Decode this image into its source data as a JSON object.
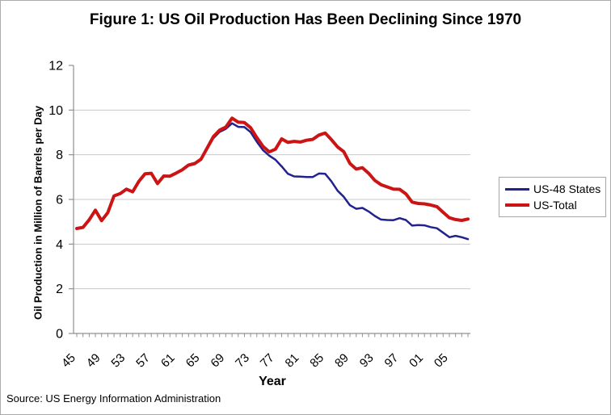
{
  "figure": {
    "source_note": "Source: US Energy Information Administration"
  },
  "chart_data": {
    "type": "line",
    "title": "Figure 1: US Oil Production Has Been Declining Since 1970",
    "xlabel": "Year",
    "ylabel": "Oil Production in Million of Barrels per Day",
    "ylim": [
      0,
      12
    ],
    "grid": "horizontal-only",
    "legend_position": "right-outside",
    "axis_color": "#909090",
    "grid_color": "#c8c8c8",
    "text_color": "#000000",
    "yticks": [
      0,
      2,
      4,
      6,
      8,
      10,
      12
    ],
    "ytick_labels": [
      "0",
      "2",
      "4",
      "6",
      "8",
      "10",
      "12"
    ],
    "xtick_label_step_years": 4,
    "xtick_labels": [
      "45",
      "49",
      "53",
      "57",
      "61",
      "65",
      "69",
      "73",
      "77",
      "81",
      "85",
      "89",
      "93",
      "97",
      "01",
      "05"
    ],
    "x_years": [
      1945,
      1946,
      1947,
      1948,
      1949,
      1950,
      1951,
      1952,
      1953,
      1954,
      1955,
      1956,
      1957,
      1958,
      1959,
      1960,
      1961,
      1962,
      1963,
      1964,
      1965,
      1966,
      1967,
      1968,
      1969,
      1970,
      1971,
      1972,
      1973,
      1974,
      1975,
      1976,
      1977,
      1978,
      1979,
      1980,
      1981,
      1982,
      1983,
      1984,
      1985,
      1986,
      1987,
      1988,
      1989,
      1990,
      1991,
      1992,
      1993,
      1994,
      1995,
      1996,
      1997,
      1998,
      1999,
      2000,
      2001,
      2002,
      2003,
      2004,
      2005,
      2006,
      2007,
      2008
    ],
    "series": [
      {
        "name": "US-48 States",
        "color": "#22228e",
        "width": 2.5,
        "values": [
          4.7,
          4.75,
          5.09,
          5.52,
          5.05,
          5.41,
          6.16,
          6.26,
          6.46,
          6.34,
          6.81,
          7.15,
          7.17,
          6.71,
          7.03,
          7.02,
          7.16,
          7.3,
          7.51,
          7.58,
          7.77,
          8.26,
          8.74,
          9.02,
          9.16,
          9.41,
          9.25,
          9.24,
          9.01,
          8.58,
          8.2,
          7.96,
          7.78,
          7.48,
          7.15,
          7.03,
          7.02,
          7.0,
          7.0,
          7.16,
          7.15,
          6.81,
          6.39,
          6.12,
          5.74,
          5.58,
          5.62,
          5.46,
          5.26,
          5.1,
          5.08,
          5.07,
          5.16,
          5.08,
          4.83,
          4.85,
          4.84,
          4.76,
          4.71,
          4.51,
          4.31,
          4.37,
          4.31,
          4.22
        ]
      },
      {
        "name": "US-Total",
        "color": "#cc1414",
        "width": 4,
        "values": [
          4.7,
          4.75,
          5.09,
          5.52,
          5.05,
          5.41,
          6.16,
          6.26,
          6.46,
          6.34,
          6.81,
          7.15,
          7.17,
          6.71,
          7.05,
          7.04,
          7.18,
          7.33,
          7.54,
          7.61,
          7.8,
          8.3,
          8.81,
          9.1,
          9.24,
          9.64,
          9.46,
          9.44,
          9.21,
          8.77,
          8.37,
          8.13,
          8.25,
          8.71,
          8.55,
          8.6,
          8.57,
          8.65,
          8.69,
          8.88,
          8.97,
          8.68,
          8.35,
          8.14,
          7.61,
          7.36,
          7.42,
          7.17,
          6.85,
          6.66,
          6.56,
          6.46,
          6.45,
          6.25,
          5.88,
          5.82,
          5.8,
          5.75,
          5.68,
          5.42,
          5.18,
          5.1,
          5.06,
          5.12
        ]
      }
    ]
  }
}
